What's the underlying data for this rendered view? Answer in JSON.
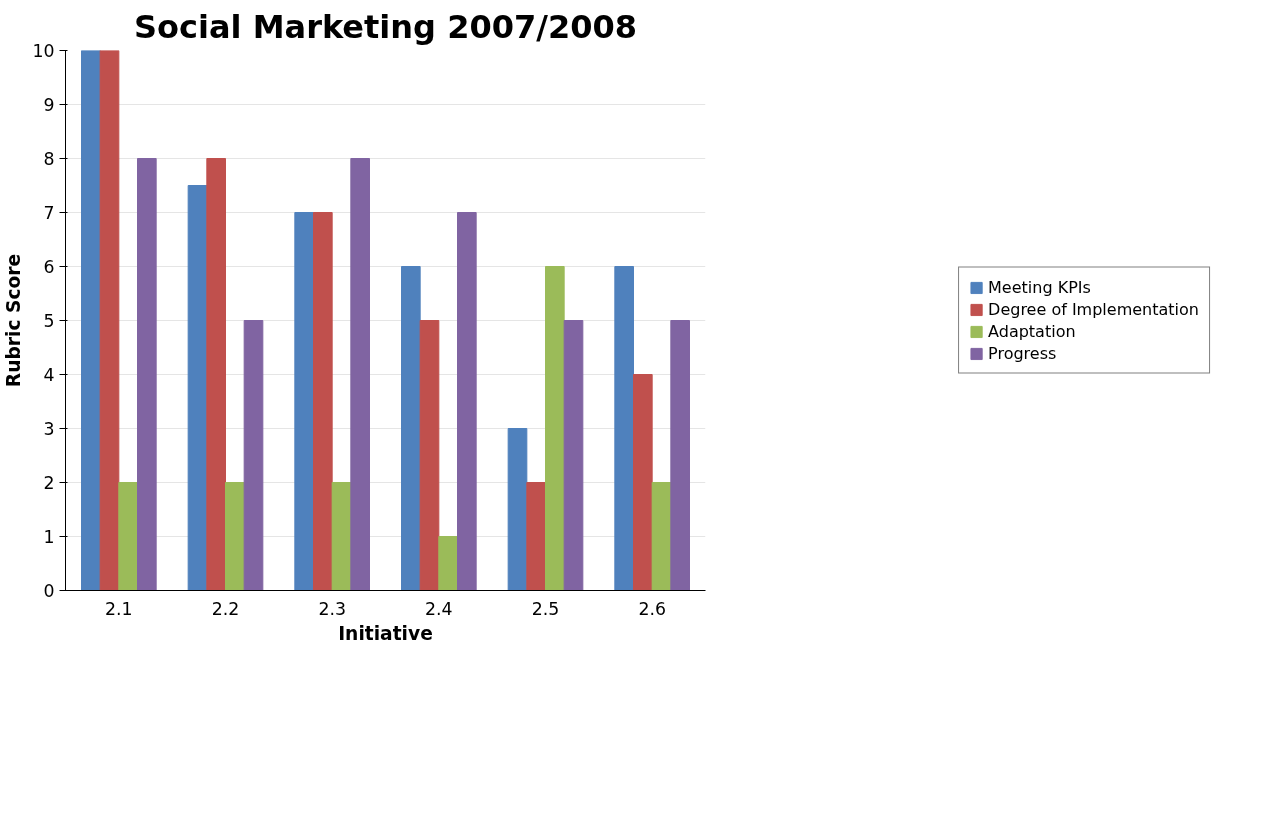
{
  "chart_data": {
    "type": "bar",
    "title": "Social Marketing 2007/2008",
    "xlabel": "Initiative",
    "ylabel": "Rubric Score",
    "categories": [
      "2.1",
      "2.2",
      "2.3",
      "2.4",
      "2.5",
      "2.6"
    ],
    "series": [
      {
        "name": "Meeting KPIs",
        "color": "#4f81bd",
        "values": [
          10,
          7.5,
          7,
          6,
          3,
          6
        ]
      },
      {
        "name": "Degree of Implementation",
        "color": "#c0504d",
        "values": [
          10,
          8,
          7,
          5,
          2,
          4
        ]
      },
      {
        "name": "Adaptation",
        "color": "#9bbb59",
        "values": [
          2,
          2,
          2,
          1,
          6,
          2
        ]
      },
      {
        "name": "Progress",
        "color": "#8064a2",
        "values": [
          8,
          5,
          8,
          7,
          5,
          5
        ]
      }
    ],
    "ylim": [
      0,
      10
    ],
    "yticks": [
      0,
      1,
      2,
      3,
      4,
      5,
      6,
      7,
      8,
      9,
      10
    ],
    "grid": "y",
    "legend": "right"
  }
}
